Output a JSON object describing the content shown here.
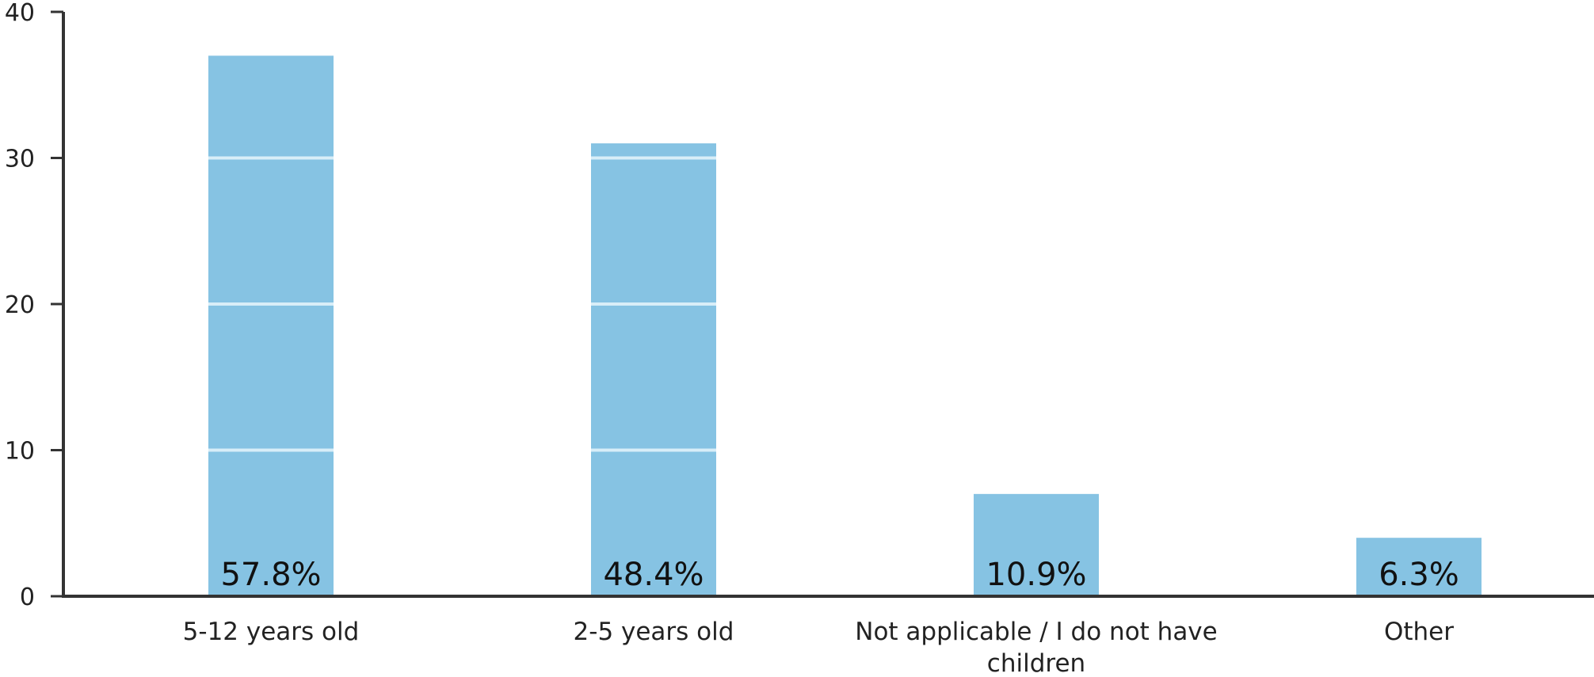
{
  "chart_data": {
    "type": "bar",
    "title": "",
    "xlabel": "",
    "ylabel": "",
    "categories": [
      "5-12 years old",
      "2-5 years old",
      "Not applicable / I do not have children",
      "Other"
    ],
    "category_label_lines": [
      [
        "5-12 years old"
      ],
      [
        "2-5 years old"
      ],
      [
        "Not applicable / I do not have",
        "children"
      ],
      [
        "Other"
      ]
    ],
    "values": [
      37,
      31,
      7,
      4
    ],
    "data_labels": [
      "57.8%",
      "48.4%",
      "10.9%",
      "6.3%"
    ],
    "ylim": [
      0,
      40
    ],
    "yticks": [
      0,
      10,
      20,
      30,
      40
    ],
    "grid": true,
    "legend": "none",
    "colors": {
      "bar": "#86c3e3",
      "gridline": "#d8eef8",
      "axis": "#333333",
      "text": "#222222"
    }
  }
}
